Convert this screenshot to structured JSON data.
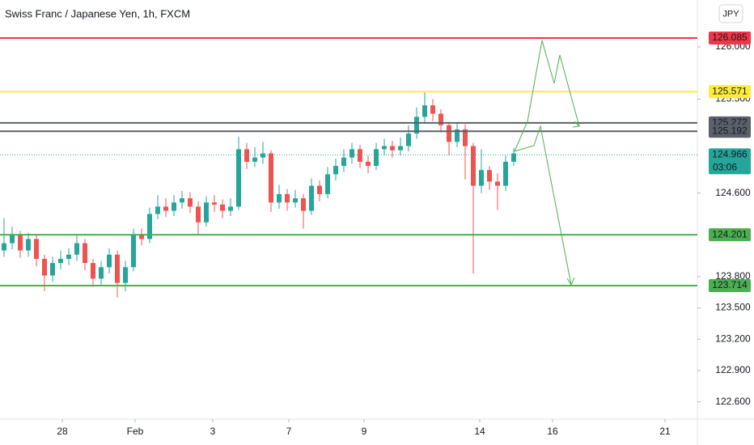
{
  "chart_data": {
    "type": "candlestick",
    "title": "Swiss Franc / Japanese Yen, 1h, FXCM",
    "currency": "JPY",
    "up_color": "#26a69a",
    "down_color": "#ef5350",
    "xlim": [
      0,
      86.2
    ],
    "xticks": [
      {
        "value": 7.7,
        "label": "28"
      },
      {
        "value": 16.7,
        "label": "Feb"
      },
      {
        "value": 26.3,
        "label": "3"
      },
      {
        "value": 35.7,
        "label": "7"
      },
      {
        "value": 45,
        "label": "9"
      },
      {
        "value": 59.3,
        "label": "14"
      },
      {
        "value": 68.3,
        "label": "16"
      },
      {
        "value": 82.2,
        "label": "21"
      }
    ],
    "ylim": [
      122.435,
      126.449
    ],
    "yticks": [
      {
        "value": 122.6,
        "label": "122.600"
      },
      {
        "value": 122.9,
        "label": "122.900"
      },
      {
        "value": 123.2,
        "label": "123.200"
      },
      {
        "value": 123.5,
        "label": "123.500"
      },
      {
        "value": 123.8,
        "label": "123.800"
      },
      {
        "value": 124.6,
        "label": "124.600"
      },
      {
        "value": 125.5,
        "label": "125.500"
      },
      {
        "value": 126.0,
        "label": "126.000"
      }
    ],
    "open": [
      124.05,
      124.12,
      124.2,
      124.05,
      124.16,
      123.97,
      123.81,
      123.93,
      123.97,
      124.01,
      124.12,
      123.93,
      123.78,
      123.89,
      124.01,
      123.74,
      123.89,
      124.2,
      124.16,
      124.4,
      124.47,
      124.43,
      124.51,
      124.55,
      124.47,
      124.32,
      124.51,
      124.49,
      124.43,
      124.47,
      125.02,
      124.9,
      124.94,
      124.98,
      124.51,
      124.59,
      124.51,
      124.55,
      124.43,
      124.67,
      124.59,
      124.78,
      124.86,
      124.94,
      125.02,
      124.9,
      124.86,
      125.02,
      125.05,
      125.01,
      125.05,
      125.17,
      125.33,
      125.44,
      125.36,
      125.25,
      125.09,
      125.21,
      125.05,
      124.67,
      124.82,
      124.71,
      124.67,
      124.9
    ],
    "high": [
      124.36,
      124.28,
      124.24,
      124.22,
      124.2,
      124.01,
      123.99,
      124.05,
      124.07,
      124.2,
      124.16,
      123.97,
      123.95,
      124.07,
      124.05,
      123.95,
      124.26,
      124.26,
      124.46,
      124.58,
      124.55,
      124.58,
      124.62,
      124.61,
      124.52,
      124.57,
      124.58,
      124.54,
      124.55,
      125.14,
      125.08,
      125.04,
      125.09,
      125.01,
      124.68,
      124.64,
      124.63,
      124.59,
      124.74,
      124.72,
      124.85,
      124.93,
      125.02,
      125.08,
      125.06,
      124.96,
      125.08,
      125.12,
      125.1,
      125.13,
      125.25,
      125.42,
      125.57,
      125.5,
      125.4,
      125.28,
      125.27,
      125.26,
      125.08,
      125.02,
      124.86,
      124.79,
      124.96,
      125.03
    ],
    "low": [
      123.99,
      124.06,
      123.98,
      123.99,
      123.9,
      123.66,
      123.75,
      123.87,
      123.91,
      123.95,
      123.86,
      123.7,
      123.72,
      123.83,
      123.6,
      123.66,
      123.85,
      124.1,
      124.12,
      124.35,
      124.37,
      124.38,
      124.45,
      124.41,
      124.21,
      124.28,
      124.42,
      124.36,
      124.38,
      124.44,
      124.83,
      124.85,
      124.88,
      124.42,
      124.45,
      124.43,
      124.46,
      124.26,
      124.39,
      124.52,
      124.55,
      124.72,
      124.8,
      124.88,
      124.84,
      124.79,
      124.82,
      124.96,
      124.94,
      124.96,
      125.0,
      125.12,
      125.28,
      125.29,
      125.18,
      124.96,
      125.04,
      124.73,
      123.83,
      124.6,
      124.63,
      124.44,
      124.62,
      124.86
    ],
    "close": [
      124.12,
      124.2,
      124.05,
      124.16,
      123.97,
      123.81,
      123.93,
      123.97,
      124.01,
      124.12,
      123.93,
      123.78,
      123.89,
      124.01,
      123.74,
      123.89,
      124.2,
      124.16,
      124.4,
      124.47,
      124.43,
      124.51,
      124.55,
      124.47,
      124.32,
      124.51,
      124.49,
      124.43,
      124.47,
      125.02,
      124.9,
      124.94,
      124.98,
      124.51,
      124.59,
      124.51,
      124.55,
      124.43,
      124.67,
      124.59,
      124.78,
      124.86,
      124.94,
      125.02,
      124.9,
      124.86,
      125.02,
      125.05,
      125.01,
      125.05,
      125.17,
      125.33,
      125.44,
      125.36,
      125.25,
      125.09,
      125.21,
      125.05,
      124.67,
      124.82,
      124.71,
      124.67,
      124.9,
      124.98
    ],
    "levels": [
      {
        "value": 126.085,
        "color": "#f23645",
        "text_color": "#ffffff"
      },
      {
        "value": 125.571,
        "color": "#ffeb3b",
        "text_color": "#131722"
      },
      {
        "value": 125.272,
        "color": "#5d606b",
        "text_color": "#ffffff"
      },
      {
        "value": 125.192,
        "color": "#5d606b",
        "text_color": "#ffffff"
      },
      {
        "value": 124.201,
        "color": "#4caf50",
        "text_color": "#ffffff"
      },
      {
        "value": 123.714,
        "color": "#4caf50",
        "text_color": "#ffffff"
      }
    ],
    "last_price": 124.966,
    "last_price_color": "#26a69a",
    "countdown": "03:06"
  }
}
